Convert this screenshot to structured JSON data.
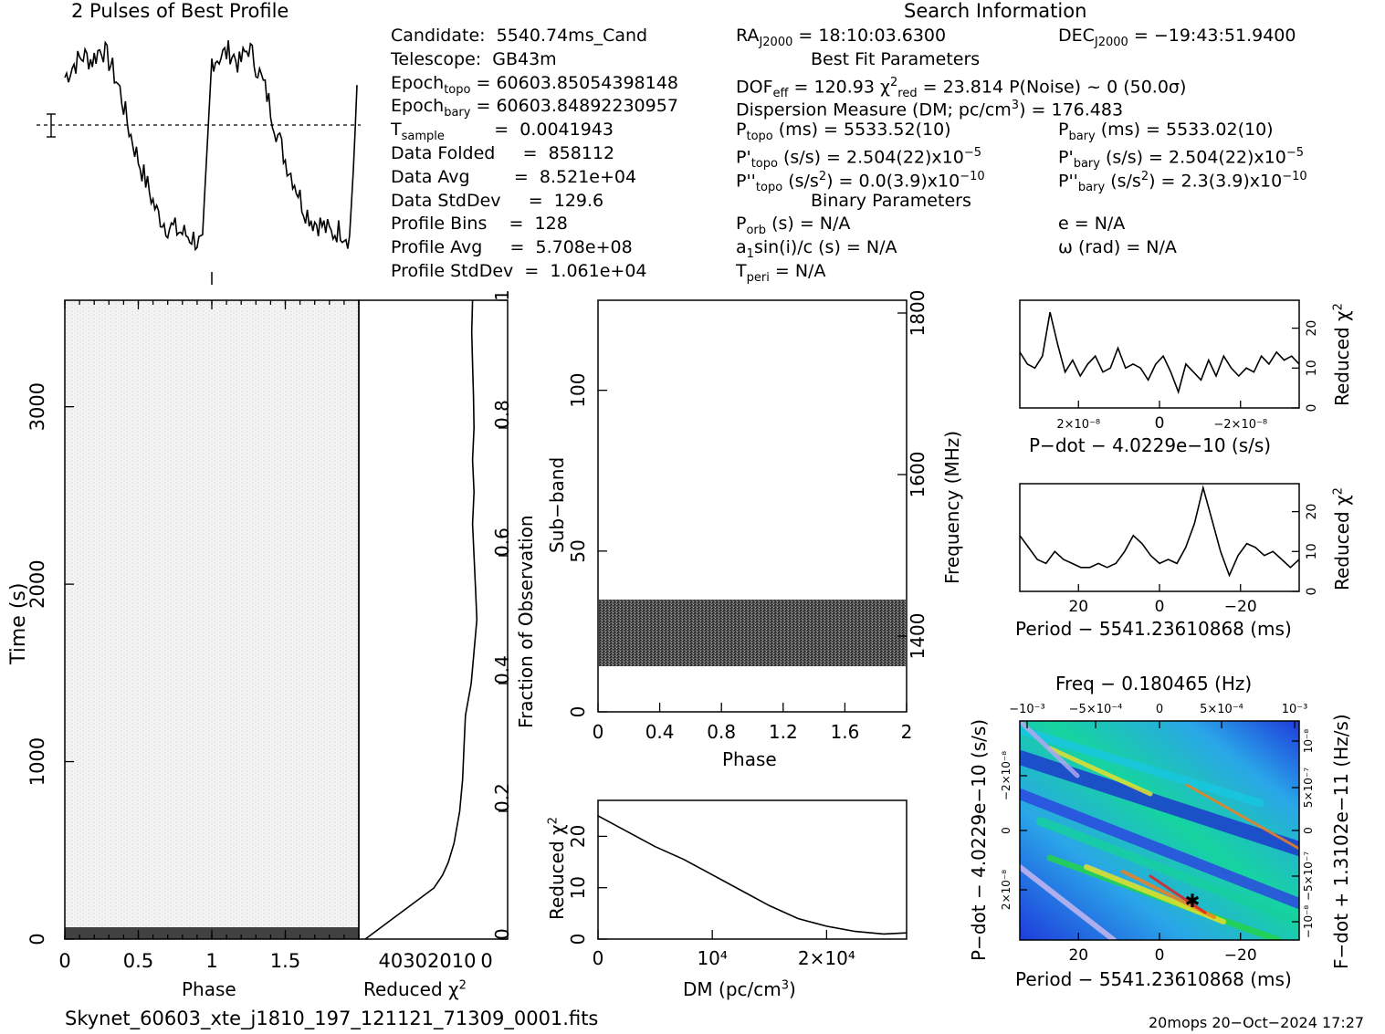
{
  "header": {
    "profile_title": "2 Pulses of Best Profile",
    "search_title": "Search Information",
    "best_fit_title": "Best Fit Parameters",
    "binary_title": "Binary Parameters"
  },
  "info_left": [
    [
      "Candidate:  5540.74ms_Cand"
    ],
    [
      "Telescope:  GB43m"
    ],
    [
      "Epoch",
      "topo",
      " = 60603.85054398148"
    ],
    [
      "Epoch",
      "bary",
      " = 60603.84892230957"
    ],
    [
      "T",
      "sample",
      "         =  0.0041943"
    ],
    [
      "Data Folded     =  858112"
    ],
    [
      "Data Avg        =  8.521e+04"
    ],
    [
      "Data StdDev     =  129.6"
    ],
    [
      "Profile Bins    =  128"
    ],
    [
      "Profile Avg     =  5.708e+08"
    ],
    [
      "Profile StdDev  =  1.061e+04"
    ]
  ],
  "search": {
    "ra": "RA",
    "ra_sub": "J2000",
    "ra_val": " = 18:10:03.6300",
    "dec": "DEC",
    "dec_sub": "J2000",
    "dec_val": " = −19:43:51.9400",
    "dof": "DOF",
    "dof_sub": "eff",
    "dof_val": " = 120.93  χ",
    "dof_sup": "2",
    "chi_sub": "red",
    "chi_val": " = 23.814   P(Noise) ~ 0    (50.0σ)",
    "dm_line": "Dispersion Measure (DM; pc/cm",
    "dm_sup": "3",
    "dm_val": ") = 176.483",
    "ptopo": "P",
    "ptopo_sub": "topo",
    "ptopo_val": " (ms) =  5533.52(10)",
    "pbary": "P",
    "pbary_sub": "bary",
    "pbary_val": " (ms) =  5533.02(10)",
    "pdtopo": "P'",
    "pdtopo_sub": "topo",
    "pdtopo_val": " (s/s) =  2.504(22)x10",
    "pdtopo_exp": "−5",
    "pdbary": "P'",
    "pdbary_sub": "bary",
    "pdbary_val": " (s/s) =  2.504(22)x10",
    "pdbary_exp": "−5",
    "pddtopo": "P''",
    "pddtopo_sub": "topo",
    "pddtopo_val": " (s/s",
    "pddtopo_sup": "2",
    "pddtopo_val2": ") = 0.0(3.9)x10",
    "pddtopo_exp": "−10",
    "pddbary": "P''",
    "pddbary_sub": "bary",
    "pddbary_val": " (s/s",
    "pddbary_sup": "2",
    "pddbary_val2": ") =  2.3(3.9)x10",
    "pddbary_exp": "−10",
    "porb": "P",
    "porb_sub": "orb",
    "porb_val": " (s) = N/A",
    "e_val": "e = N/A",
    "a1": "a",
    "a1_sub": "1",
    "a1_val": "sin(i)/c (s) = N/A",
    "omega_val": "ω (rad) = N/A",
    "tperi": "T",
    "tperi_sub": "peri",
    "tperi_val": " = N/A"
  },
  "footer": {
    "filename": "Skynet_60603_xte_j1810_197_121121_71309_0001.fits",
    "stamp": "20mops 20−Oct−2024 17:27"
  },
  "axes": {
    "phase_label": "Phase",
    "time_label": "Time (s)",
    "redchi_label": "Reduced χ",
    "redchi_sup": "2",
    "frac_label": "Fraction of Observation",
    "subband_label": "Sub−band",
    "freq_label": "Frequency (MHz)",
    "dm_axis_label": "DM (pc/cm",
    "dm_axis_sup": "3",
    "dm_axis_close": ")",
    "pdot_label": "P−dot − 4.0229e−10 (s/s)",
    "period_label": "Period − 5541.23610868 (ms)",
    "freq_top_label": "Freq − 0.180465 (Hz)",
    "fdot_label": "F−dot + 1.3102e−11 (Hz/s)",
    "pdot_left_label": "P−dot − 4.0229e−10 (s/s)"
  },
  "chart_data": [
    {
      "type": "line",
      "title": "2 Pulses of Best Profile",
      "x": [
        0,
        0.0625,
        0.125,
        0.1875,
        0.25,
        0.3125,
        0.375,
        0.4375,
        0.5,
        0.5625,
        0.625,
        0.6875,
        0.75,
        0.8125,
        0.875,
        0.9375,
        1.0,
        1.0625,
        1.125,
        1.1875,
        1.25,
        1.3125,
        1.375,
        1.4375,
        1.5,
        1.5625,
        1.625,
        1.6875,
        1.75,
        1.8125,
        1.875,
        1.9375,
        2.0
      ],
      "y": [
        0.82,
        0.88,
        0.92,
        0.9,
        0.96,
        0.88,
        0.76,
        0.58,
        0.44,
        0.32,
        0.2,
        0.14,
        0.12,
        0.1,
        0.08,
        0.04,
        0.9,
        0.92,
        0.94,
        0.88,
        0.96,
        0.86,
        0.74,
        0.58,
        0.44,
        0.34,
        0.22,
        0.16,
        0.14,
        0.1,
        0.12,
        0.08,
        0.9
      ]
    },
    {
      "type": "heatmap",
      "xlabel": "Phase",
      "ylabel": "Time (s)",
      "xlim": [
        0,
        2
      ],
      "ylim": [
        0,
        3600
      ],
      "x_ticks": [
        "0",
        "0.5",
        "1",
        "1.5"
      ],
      "y_ticks": [
        "0",
        "1000",
        "2000",
        "3000"
      ]
    },
    {
      "type": "line",
      "xlabel": "Reduced χ²",
      "ylabel": "Fraction of Observation",
      "x_ticks": [
        "40",
        "30",
        "20",
        "10",
        "0"
      ],
      "y_ticks": [
        "0",
        "0.2",
        "0.4",
        "0.6",
        "0.8",
        "1"
      ],
      "fraction": [
        0.0,
        0.02,
        0.04,
        0.06,
        0.08,
        0.1,
        0.12,
        0.15,
        0.2,
        0.25,
        0.3,
        0.35,
        0.4,
        0.45,
        0.5,
        0.55,
        0.6,
        0.65,
        0.7,
        0.75,
        0.8,
        0.85,
        0.9,
        0.95,
        1.0
      ],
      "redchi": [
        44,
        38,
        32,
        26,
        20,
        17,
        15,
        13,
        11,
        10,
        9.5,
        9,
        7,
        6,
        5,
        5.5,
        6,
        6.5,
        6,
        6.5,
        6,
        6.2,
        6.5,
        6.8,
        6.5
      ]
    },
    {
      "type": "heatmap",
      "xlabel": "Phase",
      "ylabel": "Sub−band",
      "y2label": "Frequency (MHz)",
      "xlim": [
        0,
        2
      ],
      "ylim": [
        0,
        128
      ],
      "x_ticks": [
        "0",
        "0.4",
        "0.8",
        "1.2",
        "1.6",
        "2"
      ],
      "y_ticks": [
        "0",
        "50",
        "100"
      ],
      "y2_ticks": [
        "1400",
        "1600",
        "1800"
      ]
    },
    {
      "type": "line",
      "xlabel": "DM (pc/cm³)",
      "ylabel": "Reduced χ²",
      "x_ticks": [
        "0",
        "10⁴",
        "2×10⁴"
      ],
      "y_ticks": [
        "0",
        "10",
        "20"
      ],
      "x": [
        0,
        2500,
        5000,
        7500,
        10000,
        12500,
        15000,
        17500,
        20000,
        22500,
        25000,
        27000
      ],
      "y": [
        24,
        21,
        18,
        15.5,
        12.5,
        9.5,
        6.5,
        4,
        2.5,
        1.5,
        1,
        1.2
      ]
    },
    {
      "type": "line",
      "xlabel": "P−dot − 4.0229e−10 (s/s)",
      "ylabel": "Reduced χ²",
      "x_ticks": [
        "2×10⁻⁸",
        "0",
        "−2×10⁻⁸"
      ],
      "y_ticks": [
        "0",
        "10",
        "20"
      ],
      "y": [
        14,
        11,
        10,
        13,
        24,
        16,
        9,
        12,
        8,
        11,
        13,
        9,
        10,
        15,
        10,
        11,
        10,
        7,
        11,
        13,
        9,
        4,
        11,
        9,
        7,
        12,
        8,
        13,
        10,
        8,
        10,
        9,
        13,
        11,
        14,
        12,
        13,
        11
      ]
    },
    {
      "type": "line",
      "xlabel": "Period − 5541.23610868 (ms)",
      "ylabel": "Reduced χ²",
      "x_ticks": [
        "20",
        "0",
        "−20"
      ],
      "y_ticks": [
        "0",
        "10",
        "20"
      ],
      "y": [
        14,
        11,
        8,
        7,
        10,
        8,
        7,
        6,
        6,
        7,
        6,
        7,
        10,
        14,
        12,
        9,
        7,
        8,
        7,
        11,
        17,
        26,
        18,
        10,
        4,
        9,
        12,
        11,
        9,
        10,
        8,
        6,
        8
      ]
    },
    {
      "type": "heatmap",
      "title": "Freq − 0.180465 (Hz)",
      "xlabel": "Period − 5541.23610868 (ms)",
      "ylabel": "P−dot − 4.0229e−10 (s/s)",
      "y2label": "F−dot + 1.3102e−11 (Hz/s)",
      "x_ticks": [
        "20",
        "0",
        "−20"
      ],
      "top_ticks": [
        "−10⁻³",
        "−5×10⁻⁴",
        "0",
        "5×10⁻⁴",
        "10⁻³"
      ]
    }
  ]
}
